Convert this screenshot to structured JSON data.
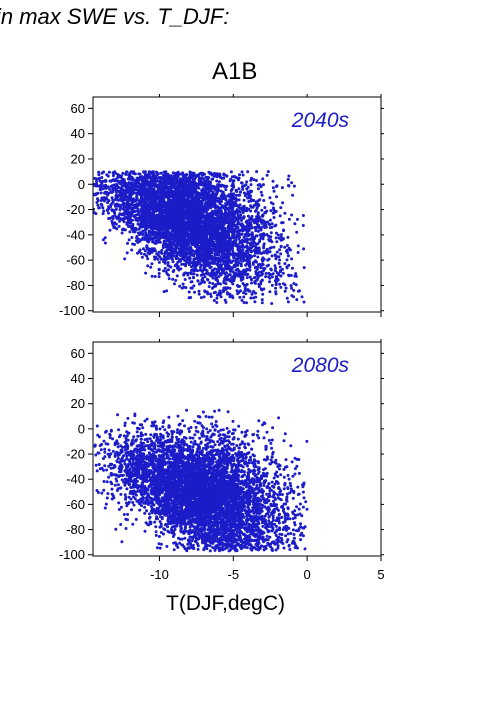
{
  "figure": {
    "title_fragment": "in max SWE vs. T_DJF:",
    "scenario": "A1B",
    "xlabel": "T(DJF,degC)"
  },
  "colors": {
    "points": "#1c1cc8",
    "annotation": "#1c1cc8",
    "axes": "#000000"
  },
  "chart_data": [
    {
      "type": "scatter",
      "annotation": "2040s",
      "xlim": [
        -14.5,
        5
      ],
      "ylim": [
        -101,
        69
      ],
      "yticks": [
        60,
        40,
        20,
        0,
        -20,
        -40,
        -60,
        -80,
        -100
      ],
      "xticks": [
        -10,
        -5,
        0,
        5
      ],
      "xtick_labels_shown": false,
      "grid": false,
      "cloud": {
        "center": [
          -8.0,
          -27.0
        ],
        "x_range": [
          -14.5,
          -0.2
        ],
        "y_range": [
          -95,
          10
        ],
        "slope": 4.2,
        "n_points": 5500
      }
    },
    {
      "type": "scatter",
      "annotation": "2080s",
      "xlim": [
        -14.5,
        5
      ],
      "ylim": [
        -101,
        69
      ],
      "yticks": [
        60,
        40,
        20,
        0,
        -20,
        -40,
        -60,
        -80,
        -100
      ],
      "xticks": [
        -10,
        -5,
        0,
        5
      ],
      "xtick_labels_shown": true,
      "grid": false,
      "cloud": {
        "center": [
          -7.0,
          -52.0
        ],
        "x_range": [
          -14.5,
          0
        ],
        "y_range": [
          -97,
          15
        ],
        "slope": 4.0,
        "n_points": 5500
      }
    }
  ]
}
